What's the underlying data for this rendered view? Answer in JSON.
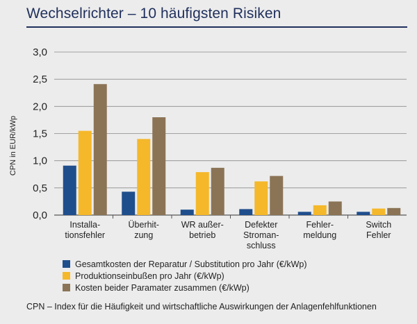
{
  "chart_data": {
    "type": "bar",
    "title": "Wechselrichter – 10 häufigsten Risiken",
    "ylabel": "CPN in EUR/kWp",
    "ylim": [
      0,
      3.0
    ],
    "yticks": [
      "0,0",
      "0,5",
      "1,0",
      "1,5",
      "2,0",
      "2,5",
      "3,0"
    ],
    "grid": true,
    "legend_position": "bottom",
    "categories": [
      [
        "Installa-",
        "tionsfehler"
      ],
      [
        "Überhit-",
        "zung"
      ],
      [
        "WR außer-",
        "betrieb"
      ],
      [
        "Defekter",
        "Stroman-",
        "schluss"
      ],
      [
        "Fehler-",
        "meldung"
      ],
      [
        "Switch",
        "Fehler"
      ]
    ],
    "series": [
      {
        "name": "Gesamtkosten der Reparatur / Substitution pro Jahr (€/kWp)",
        "color": "#1f4e8c",
        "values": [
          0.91,
          0.43,
          0.1,
          0.11,
          0.06,
          0.06
        ]
      },
      {
        "name": "Produktionseinbußen pro Jahr (€/kWp)",
        "color": "#f5b82a",
        "values": [
          1.55,
          1.4,
          0.79,
          0.62,
          0.18,
          0.12
        ]
      },
      {
        "name": "Kosten beider Paramater zusammen (€/kWp)",
        "color": "#8b7456",
        "values": [
          2.41,
          1.8,
          0.87,
          0.72,
          0.25,
          0.13
        ]
      }
    ],
    "footnote": "CPN – Index für die Häufigkeit und wirtschaftliche Auswirkungen der Anlagenfehlfunktionen"
  }
}
